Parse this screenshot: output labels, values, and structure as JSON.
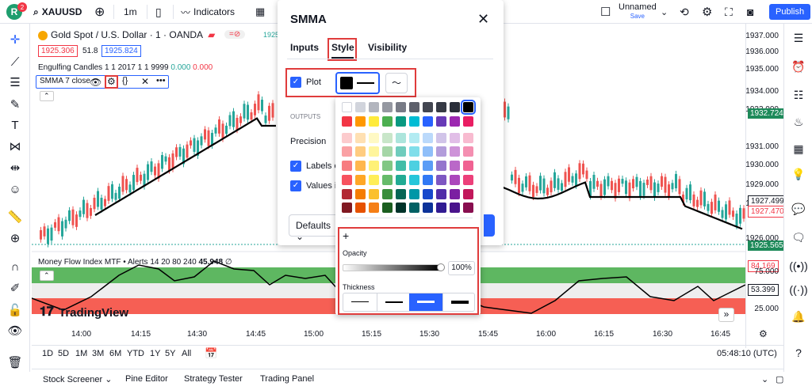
{
  "topbar": {
    "avatar_letter": "R",
    "avatar_badge": "2",
    "symbol": "XAUUSD",
    "interval": "1m",
    "indicators": "Indicators",
    "layout_name": "Unnamed",
    "layout_status": "Save",
    "publish": "Publish"
  },
  "legend": {
    "title": "Gold Spot / U.S. Dollar · 1 · OANDA",
    "bid": "1925.306",
    "spread": "51.8",
    "ask": "1925.824",
    "price_top": "1925",
    "engulf": "Engulfing Candles 1 1 2017 1 1 9999",
    "engulf_v1": "0.000",
    "engulf_v2": "0.000",
    "smma": "SMMA 7 close",
    "mfi": "Money Flow Index MTF • Alerts 14 20 80 240",
    "mfi_val": "45.948",
    "mfi_zero": "∅"
  },
  "yaxis": {
    "labels": [
      "1937.000",
      "1936.000",
      "1935.000",
      "1934.000",
      "1933.000",
      "1931.000",
      "1930.000",
      "1929.000",
      "1928.000",
      "1926.000"
    ],
    "badges": [
      {
        "t": "1932.724",
        "c": "#1e8a5a"
      },
      {
        "t": "1927.499",
        "c": "#ffffff"
      },
      {
        "t": "1927.470",
        "c": "#ffffff"
      },
      {
        "t": "1925.565",
        "c": "#1e8a5a"
      },
      {
        "t": "84.169",
        "c": "#ffffff"
      },
      {
        "t": "53.399",
        "c": "#ffffff"
      }
    ],
    "mfi_labels": [
      "75.000",
      "25.000"
    ]
  },
  "xaxis": [
    "14:00",
    "14:15",
    "14:30",
    "14:45",
    "15:00",
    "15:15",
    "15:30",
    "15:45",
    "16:00",
    "16:15",
    "16:30",
    "16:45"
  ],
  "timeframes": [
    "1D",
    "5D",
    "1M",
    "3M",
    "6M",
    "YTD",
    "1Y",
    "5Y",
    "All"
  ],
  "clock": "05:48:10 (UTC)",
  "footer": [
    "Stock Screener",
    "Pine Editor",
    "Strategy Tester",
    "Trading Panel"
  ],
  "watermark": "TradingView",
  "dialog": {
    "title": "SMMA",
    "tabs": [
      "Inputs",
      "Style",
      "Visibility"
    ],
    "plot_label": "Plot",
    "outputs": "OUTPUTS",
    "precision": "Precision",
    "labels_on": "Labels o",
    "values_in": "Values i",
    "defaults": "Defaults"
  },
  "picker": {
    "plus": "+",
    "opacity_label": "Opacity",
    "opacity_value": "100%",
    "thickness_label": "Thickness"
  },
  "colors": {
    "green": "#26a69a",
    "red": "#ef5350",
    "accent": "#2962ff"
  }
}
